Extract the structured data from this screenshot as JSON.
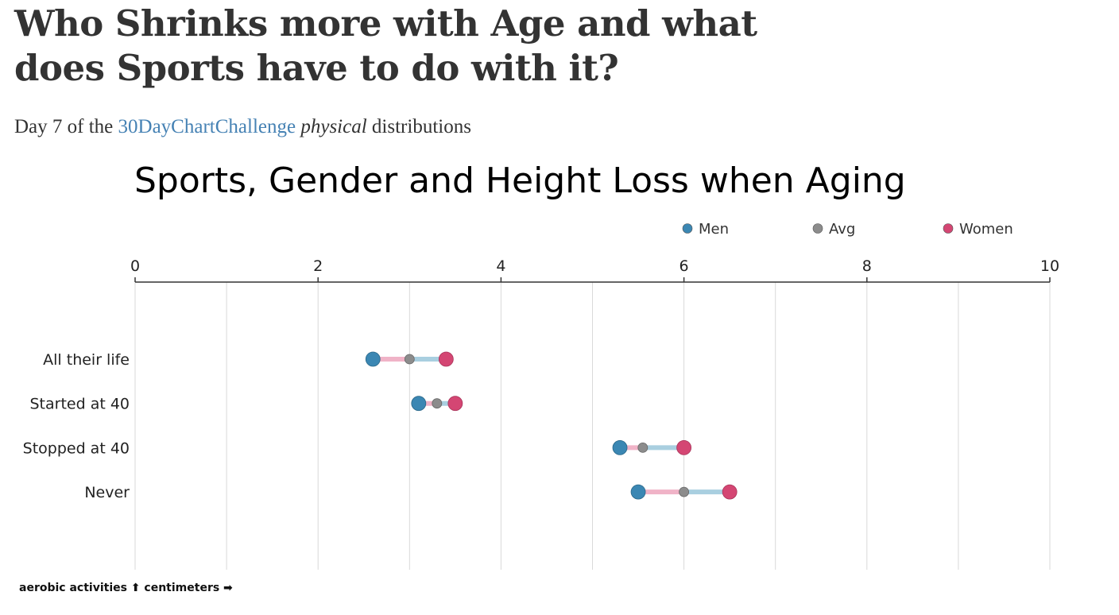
{
  "header": {
    "title": "Who Shrinks more with Age and what does Sports have to do with it?",
    "subtitle_prefix": "Day 7 of the ",
    "subtitle_link": "30DayChartChallenge",
    "subtitle_emph": "physical",
    "subtitle_suffix": " distributions"
  },
  "caption": "aerobic activities ⬆ centimeters ➡",
  "colors": {
    "men": "#3b87b3",
    "avg": "#8c8c8c",
    "women": "#d44673",
    "men_bar": "#a9cfe0",
    "women_bar": "#f0b3c7",
    "grid": "#d9d9d9",
    "axis": "#333333"
  },
  "chart_data": {
    "type": "dumbbell",
    "title": "Sports, Gender and Height Loss when Aging",
    "xlabel": "",
    "ylabel": "",
    "xlim": [
      0,
      10
    ],
    "x_ticks": [
      0,
      2,
      4,
      6,
      8,
      10
    ],
    "grid": true,
    "legend_position": "top-right",
    "legend": [
      "Men",
      "Avg",
      "Women"
    ],
    "categories": [
      "All their life",
      "Started at 40",
      "Stopped at 40",
      "Never"
    ],
    "series": [
      {
        "name": "Men",
        "values": [
          2.6,
          3.1,
          5.3,
          5.5
        ]
      },
      {
        "name": "Avg",
        "values": [
          3.0,
          3.3,
          5.55,
          6.0
        ]
      },
      {
        "name": "Women",
        "values": [
          3.4,
          3.5,
          6.0,
          6.5
        ]
      }
    ]
  }
}
